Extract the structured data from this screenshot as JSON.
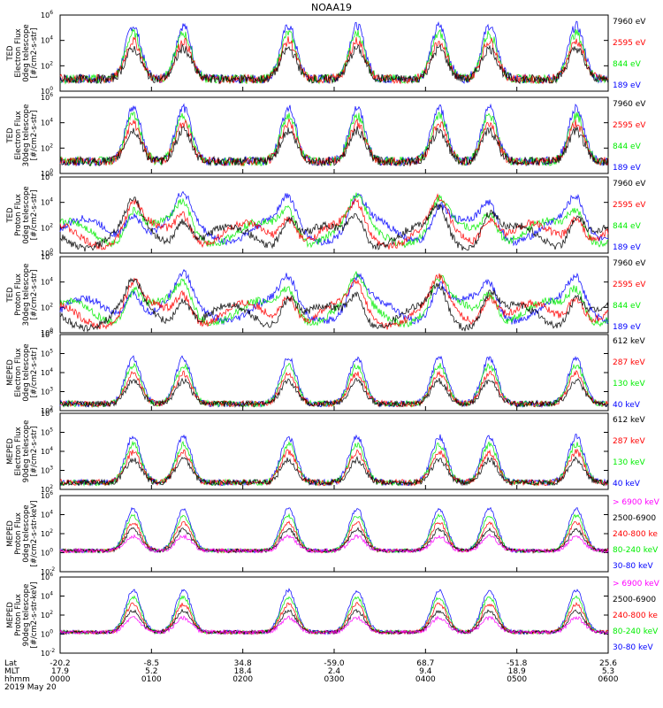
{
  "title": "NOAA19",
  "colors": {
    "black": "#000000",
    "red": "#ff0000",
    "green": "#00ee00",
    "blue": "#0000ff",
    "magenta": "#ff00ff"
  },
  "chart_data": {
    "type": "line",
    "title": "NOAA19",
    "x_time_hours": [
      0,
      6
    ],
    "panels": [
      {
        "ylabel_lines": [
          "TED",
          "Electron Flux",
          "0deg telescope",
          "[#/cm2-s-str]"
        ],
        "ylim_log10": [
          0,
          6
        ],
        "legend": [
          {
            "label": "7960 eV",
            "color": "black"
          },
          {
            "label": "2595 eV",
            "color": "red"
          },
          {
            "label": "844 eV",
            "color": "green"
          },
          {
            "label": "189 eV",
            "color": "blue"
          }
        ]
      },
      {
        "ylabel_lines": [
          "TED",
          "Electron Flux",
          "30deg telescope",
          "[#/cm2-s-str]"
        ],
        "ylim_log10": [
          0,
          6
        ],
        "legend": [
          {
            "label": "7960 eV",
            "color": "black"
          },
          {
            "label": "2595 eV",
            "color": "red"
          },
          {
            "label": "844 eV",
            "color": "green"
          },
          {
            "label": "189 eV",
            "color": "blue"
          }
        ]
      },
      {
        "ylabel_lines": [
          "TED",
          "Proton Flux",
          "0deg telescope",
          "[#/cm2-s-str]"
        ],
        "ylim_log10": [
          0,
          6
        ],
        "legend": [
          {
            "label": "7960 eV",
            "color": "black"
          },
          {
            "label": "2595 eV",
            "color": "red"
          },
          {
            "label": "844 eV",
            "color": "green"
          },
          {
            "label": "189 eV",
            "color": "blue"
          }
        ]
      },
      {
        "ylabel_lines": [
          "TED",
          "Proton Flux",
          "30deg telescope",
          "[#/cm2-s-str]"
        ],
        "ylim_log10": [
          0,
          6
        ],
        "legend": [
          {
            "label": "7960 eV",
            "color": "black"
          },
          {
            "label": "2595 eV",
            "color": "red"
          },
          {
            "label": "844 eV",
            "color": "green"
          },
          {
            "label": "189 eV",
            "color": "blue"
          }
        ]
      },
      {
        "ylabel_lines": [
          "MEPED",
          "Electron Flux",
          "0deg telescope",
          "[#/cm2-s-str]"
        ],
        "ylim_log10": [
          2,
          6
        ],
        "legend": [
          {
            "label": "612 keV",
            "color": "black"
          },
          {
            "label": "287 keV",
            "color": "red"
          },
          {
            "label": "130 keV",
            "color": "green"
          },
          {
            "label": "40 keV",
            "color": "blue"
          }
        ]
      },
      {
        "ylabel_lines": [
          "MEPED",
          "Electron Flux",
          "90deg telescope",
          "[#/cm2-s-str]"
        ],
        "ylim_log10": [
          2,
          6
        ],
        "legend": [
          {
            "label": "612 keV",
            "color": "black"
          },
          {
            "label": "287 keV",
            "color": "red"
          },
          {
            "label": "130 keV",
            "color": "green"
          },
          {
            "label": "40 keV",
            "color": "blue"
          }
        ]
      },
      {
        "ylabel_lines": [
          "MEPED",
          "Proton Flux",
          "0deg telescope",
          "[#/cm2-s-str-keV]"
        ],
        "ylim_log10": [
          -2,
          6
        ],
        "legend": [
          {
            "label": "> 6900 keV",
            "color": "magenta"
          },
          {
            "label": "2500-6900",
            "color": "black"
          },
          {
            "label": "240-800 ke",
            "color": "red"
          },
          {
            "label": "80-240 keV",
            "color": "green"
          },
          {
            "label": "30-80 keV",
            "color": "blue"
          }
        ]
      },
      {
        "ylabel_lines": [
          "MEPED",
          "Proton Flux",
          "90deg telescope",
          "[#/cm2-s-str-keV]"
        ],
        "ylim_log10": [
          -2,
          6
        ],
        "legend": [
          {
            "label": "> 6900 keV",
            "color": "magenta"
          },
          {
            "label": "2500-6900",
            "color": "black"
          },
          {
            "label": "240-800 ke",
            "color": "red"
          },
          {
            "label": "80-240 keV",
            "color": "green"
          },
          {
            "label": "30-80 keV",
            "color": "blue"
          }
        ]
      }
    ],
    "x_axis": {
      "row_labels": [
        "Lat",
        "MLT",
        "hhmm",
        "2019 May 20"
      ],
      "ticks": [
        {
          "lat": "-20.2",
          "mlt": "17.9",
          "hhmm": "0000"
        },
        {
          "lat": "-8.5",
          "mlt": "5.2",
          "hhmm": "0100"
        },
        {
          "lat": "34.8",
          "mlt": "18.4",
          "hhmm": "0200"
        },
        {
          "lat": "-59.0",
          "mlt": "2.4",
          "hhmm": "0300"
        },
        {
          "lat": "68.7",
          "mlt": "9.4",
          "hhmm": "0400"
        },
        {
          "lat": "-51.8",
          "mlt": "18.9",
          "hhmm": "0500"
        },
        {
          "lat": "25.6",
          "mlt": "5.3",
          "hhmm": "0600"
        }
      ]
    }
  }
}
